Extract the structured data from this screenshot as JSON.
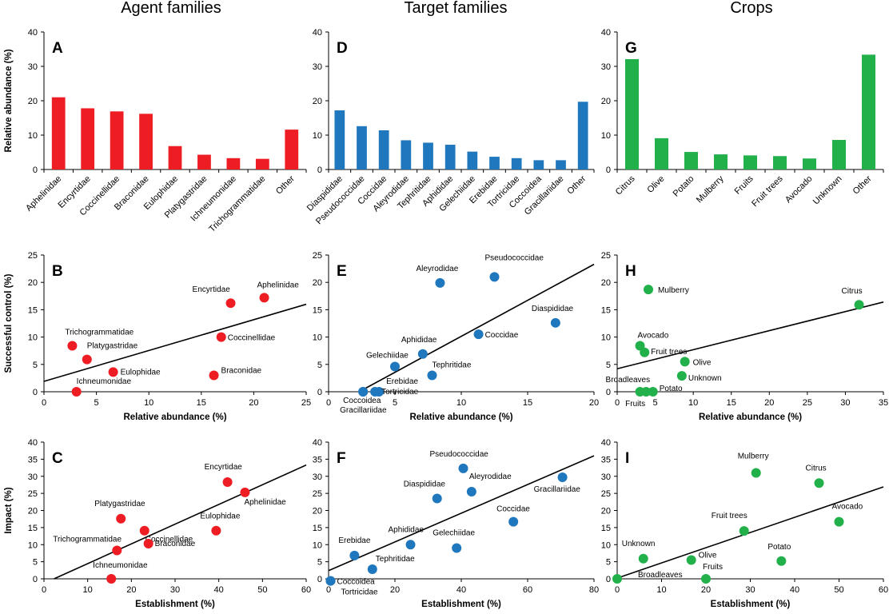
{
  "column_titles": [
    "Agent families",
    "Target families",
    "Crops"
  ],
  "colors": {
    "agent": "#EE1D23",
    "target": "#1F77BE",
    "crop": "#22B04B"
  },
  "chart_data": [
    {
      "id": "A",
      "type": "bar",
      "color": "agent",
      "categories": [
        "Aphelinidae",
        "Encyrtidae",
        "Coccinellidae",
        "Braconidae",
        "Eulophidae",
        "Platygastridae",
        "Ichneumonidae",
        "Trichogrammatidae",
        "Other"
      ],
      "values": [
        21,
        17.8,
        16.9,
        16.2,
        6.8,
        4.3,
        3.3,
        3.1,
        11.6
      ],
      "ylabel": "Relative abundance (%)",
      "ylim": [
        0,
        40
      ],
      "yticks": [
        0,
        10,
        20,
        30,
        40
      ]
    },
    {
      "id": "D",
      "type": "bar",
      "color": "target",
      "categories": [
        "Diaspididae",
        "Pseudococcidae",
        "Coccidae",
        "Aleyrodidae",
        "Tephritidae",
        "Aphididae",
        "Gelechiidae",
        "Erebidae",
        "Tortricidae",
        "Coccoidea",
        "Gracillariidae",
        "Other"
      ],
      "values": [
        17.2,
        12.6,
        11.4,
        8.5,
        7.8,
        7.2,
        5.2,
        3.7,
        3.3,
        2.7,
        2.7,
        19.7
      ],
      "ylim": [
        0,
        40
      ],
      "yticks": [
        0,
        10,
        20,
        30,
        40
      ]
    },
    {
      "id": "G",
      "type": "bar",
      "color": "crop",
      "categories": [
        "Citrus",
        "Olive",
        "Potato",
        "Mulberry",
        "Fruits",
        "Fruit trees",
        "Avocado",
        "Unknown",
        "Other"
      ],
      "values": [
        32.1,
        9.1,
        5.1,
        4.4,
        4.1,
        3.9,
        3.2,
        8.6,
        33.4
      ],
      "ylim": [
        0,
        40
      ],
      "yticks": [
        0,
        10,
        20,
        30,
        40
      ]
    },
    {
      "id": "B",
      "type": "scatter",
      "color": "agent",
      "ylabel": "Successful control (%)",
      "xlabel": "Relative abundance (%)",
      "xlim": [
        0,
        25
      ],
      "ylim": [
        0,
        25
      ],
      "xticks": [
        0,
        5,
        10,
        15,
        20,
        25
      ],
      "yticks": [
        0,
        5,
        10,
        15,
        20,
        25
      ],
      "fit": [
        [
          0,
          1.9
        ],
        [
          25,
          16
        ]
      ],
      "points": [
        {
          "name": "Aphelinidae",
          "x": 21,
          "y": 17.2
        },
        {
          "name": "Encyrtidae",
          "x": 17.8,
          "y": 16.2
        },
        {
          "name": "Coccinellidae",
          "x": 16.9,
          "y": 10
        },
        {
          "name": "Braconidae",
          "x": 16.2,
          "y": 3
        },
        {
          "name": "Eulophidae",
          "x": 6.6,
          "y": 3.6
        },
        {
          "name": "Platygastridae",
          "x": 4.1,
          "y": 5.9
        },
        {
          "name": "Ichneumonidae",
          "x": 3.1,
          "y": 0
        },
        {
          "name": "Trichogrammatidae",
          "x": 2.7,
          "y": 8.4
        }
      ]
    },
    {
      "id": "E",
      "type": "scatter",
      "color": "target",
      "xlabel": "Relative abundance (%)",
      "xlim": [
        0,
        20
      ],
      "ylim": [
        0,
        25
      ],
      "xticks": [
        0,
        5,
        10,
        15,
        20
      ],
      "yticks": [
        0,
        5,
        10,
        15,
        20,
        25
      ],
      "fit": [
        [
          2.3,
          0
        ],
        [
          20,
          23.3
        ]
      ],
      "points": [
        {
          "name": "Aleyrodidae",
          "x": 8.4,
          "y": 19.9
        },
        {
          "name": "Pseudococcidae",
          "x": 12.5,
          "y": 21
        },
        {
          "name": "Diaspididae",
          "x": 17.1,
          "y": 12.6
        },
        {
          "name": "Coccidae",
          "x": 11.3,
          "y": 10.5
        },
        {
          "name": "Aphididae",
          "x": 7.1,
          "y": 6.9
        },
        {
          "name": "Gelechiidae",
          "x": 5,
          "y": 4.6
        },
        {
          "name": "Tephritidae",
          "x": 7.8,
          "y": 3
        },
        {
          "name": "Erebidae",
          "x": 3.8,
          "y": 0
        },
        {
          "name": "Tortricidae",
          "x": 3.5,
          "y": 0
        },
        {
          "name": "Coccoidea",
          "x": 2.6,
          "y": 0
        },
        {
          "name": "Gracillariidae",
          "x": 2.6,
          "y": 0
        }
      ]
    },
    {
      "id": "H",
      "type": "scatter",
      "color": "crop",
      "xlabel": "Relative abundance (%)",
      "xlim": [
        0,
        35
      ],
      "ylim": [
        0,
        25
      ],
      "xticks": [
        0,
        5,
        10,
        15,
        20,
        25,
        30,
        35
      ],
      "yticks": [
        0,
        5,
        10,
        15,
        20,
        25
      ],
      "fit": [
        [
          0,
          4.2
        ],
        [
          35,
          16.4
        ]
      ],
      "points": [
        {
          "name": "Mulberry",
          "x": 4.1,
          "y": 18.7
        },
        {
          "name": "Citrus",
          "x": 31.8,
          "y": 15.9
        },
        {
          "name": "Avocado",
          "x": 3,
          "y": 8.4
        },
        {
          "name": "Fruit trees",
          "x": 3.6,
          "y": 7.2
        },
        {
          "name": "Olive",
          "x": 8.9,
          "y": 5.5
        },
        {
          "name": "Unknown",
          "x": 8.5,
          "y": 2.9
        },
        {
          "name": "Potato",
          "x": 4.7,
          "y": 0
        },
        {
          "name": "Fruits",
          "x": 3.8,
          "y": 0
        },
        {
          "name": "Broadleaves",
          "x": 3,
          "y": 0
        }
      ]
    },
    {
      "id": "C",
      "type": "scatter",
      "color": "agent",
      "ylabel": "Impact (%)",
      "xlabel": "Establishment (%)",
      "xlim": [
        0,
        60
      ],
      "ylim": [
        0,
        40
      ],
      "xticks": [
        0,
        10,
        20,
        30,
        40,
        50,
        60
      ],
      "yticks": [
        0,
        5,
        10,
        15,
        20,
        25,
        30,
        35,
        40
      ],
      "fit": [
        [
          2.3,
          0
        ],
        [
          60,
          33.3
        ]
      ],
      "points": [
        {
          "name": "Encyrtidae",
          "x": 42,
          "y": 28.3
        },
        {
          "name": "Aphelinidae",
          "x": 46,
          "y": 25.3
        },
        {
          "name": "Platygastridae",
          "x": 17.6,
          "y": 17.6
        },
        {
          "name": "Coccinellidae",
          "x": 23,
          "y": 14.1
        },
        {
          "name": "Eulophidae",
          "x": 39.4,
          "y": 14.1
        },
        {
          "name": "Braconidae",
          "x": 23.9,
          "y": 10.3
        },
        {
          "name": "Trichogrammatidae",
          "x": 16.7,
          "y": 8.3
        },
        {
          "name": "Ichneumonidae",
          "x": 15.4,
          "y": 0
        }
      ]
    },
    {
      "id": "F",
      "type": "scatter",
      "color": "target",
      "xlabel": "Establishment (%)",
      "xlim": [
        0,
        80
      ],
      "ylim": [
        0,
        40
      ],
      "xticks": [
        0,
        20,
        40,
        60,
        80
      ],
      "yticks": [
        0,
        5,
        10,
        15,
        20,
        25,
        30,
        35,
        40
      ],
      "fit": [
        [
          0,
          2.4
        ],
        [
          80,
          36
        ]
      ],
      "points": [
        {
          "name": "Pseudococcidae",
          "x": 40.6,
          "y": 32.3
        },
        {
          "name": "Aleyrodidae",
          "x": 43.1,
          "y": 25.5
        },
        {
          "name": "Diaspididae",
          "x": 32.7,
          "y": 23.5
        },
        {
          "name": "Gracillariidae",
          "x": 70.5,
          "y": 29.7
        },
        {
          "name": "Coccidae",
          "x": 55.7,
          "y": 16.7
        },
        {
          "name": "Aphididae",
          "x": 24.7,
          "y": 10
        },
        {
          "name": "Gelechiidae",
          "x": 38.6,
          "y": 9
        },
        {
          "name": "Erebidae",
          "x": 7.8,
          "y": 6.8
        },
        {
          "name": "Tephritidae",
          "x": 13.2,
          "y": 2.8
        },
        {
          "name": "Coccoidea",
          "x": 0.6,
          "y": -0.6
        },
        {
          "name": "Tortricidae",
          "x": 0.6,
          "y": -0.6
        }
      ]
    },
    {
      "id": "I",
      "type": "scatter",
      "color": "crop",
      "xlabel": "Establishment (%)",
      "xlim": [
        0,
        60
      ],
      "ylim": [
        0,
        40
      ],
      "xticks": [
        0,
        10,
        20,
        30,
        40,
        50,
        60
      ],
      "yticks": [
        0,
        5,
        10,
        15,
        20,
        25,
        30,
        35,
        40
      ],
      "fit": [
        [
          0,
          0.2
        ],
        [
          60,
          26.9
        ]
      ],
      "points": [
        {
          "name": "Mulberry",
          "x": 31.3,
          "y": 31
        },
        {
          "name": "Citrus",
          "x": 45.5,
          "y": 28
        },
        {
          "name": "Fruit trees",
          "x": 28.6,
          "y": 14
        },
        {
          "name": "Avocado",
          "x": 50,
          "y": 16.7
        },
        {
          "name": "Unknown",
          "x": 5.9,
          "y": 5.9
        },
        {
          "name": "Olive",
          "x": 16.7,
          "y": 5.5
        },
        {
          "name": "Potato",
          "x": 37,
          "y": 5.2
        },
        {
          "name": "Fruits",
          "x": 20,
          "y": 0
        },
        {
          "name": "Broadleaves",
          "x": 0,
          "y": 0
        }
      ]
    }
  ]
}
